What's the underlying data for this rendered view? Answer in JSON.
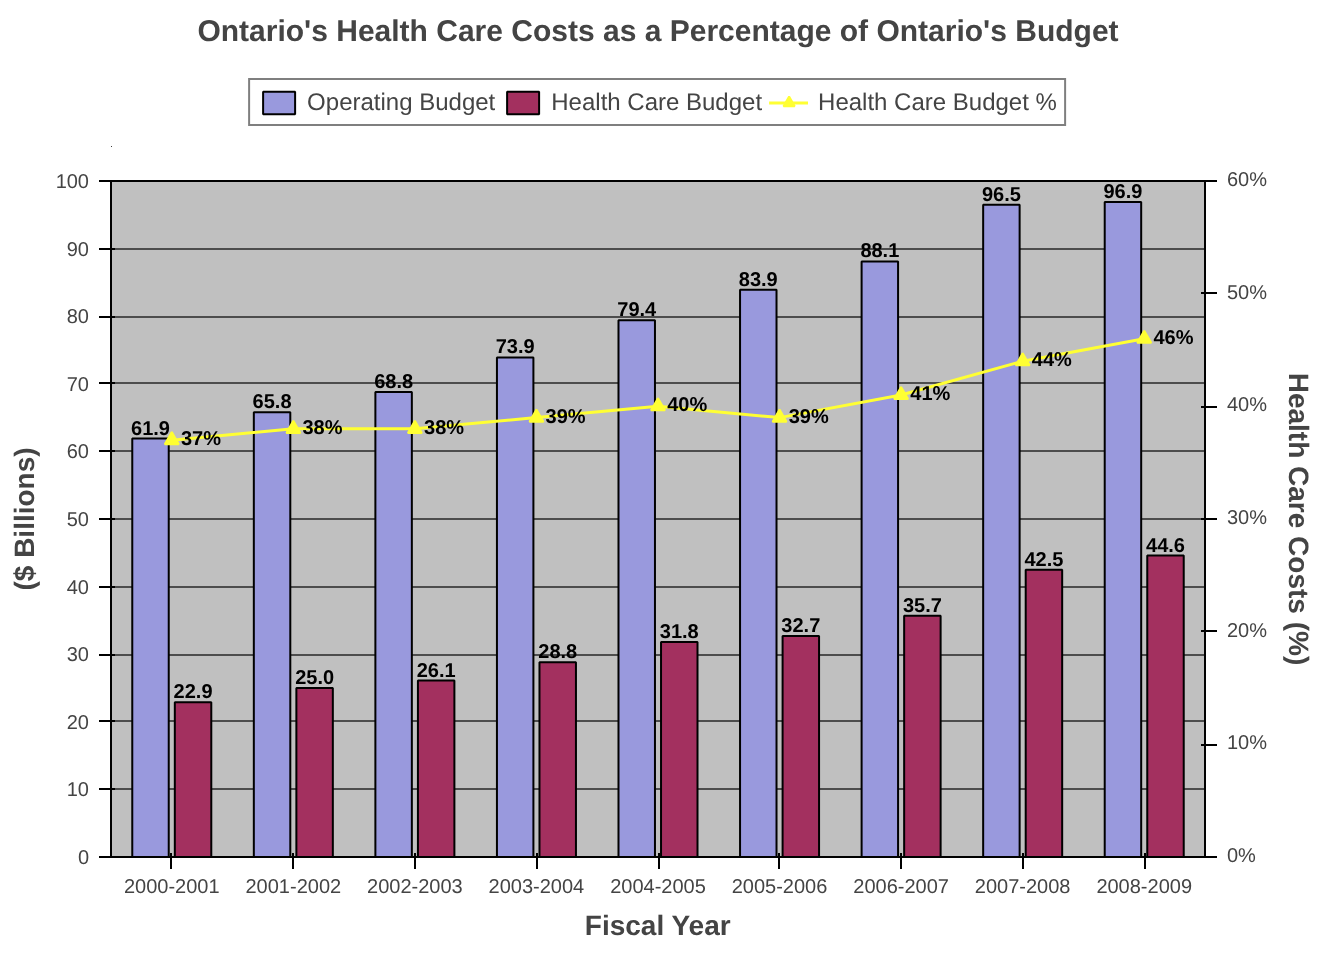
{
  "chart_data": {
    "type": "bar",
    "title": "Ontario's Health Care Costs as a Percentage of Ontario's Budget",
    "xlabel": "Fiscal Year",
    "ylabel": "($ Billions)",
    "y2label": "Health Care Costs (%)",
    "categories": [
      "2000-2001",
      "2001-2002",
      "2002-2003",
      "2003-2004",
      "2004-2005",
      "2005-2006",
      "2006-2007",
      "2007-2008",
      "2008-2009"
    ],
    "series": [
      {
        "name": "Operating Budget",
        "color": "#9999dd",
        "values": [
          61.9,
          65.8,
          68.8,
          73.9,
          79.4,
          83.9,
          88.1,
          96.5,
          96.9
        ],
        "value_labels": [
          "61.9",
          "65.8",
          "68.8",
          "73.9",
          "79.4",
          "83.9",
          "88.1",
          "96.5",
          "96.9"
        ]
      },
      {
        "name": "Health Care Budget",
        "color": "#a3305f",
        "values": [
          22.9,
          25.0,
          26.1,
          28.8,
          31.8,
          32.7,
          35.7,
          42.5,
          44.6
        ],
        "value_labels": [
          "22.9",
          "25.0",
          "26.1",
          "28.8",
          "31.8",
          "32.7",
          "35.7",
          "42.5",
          "44.6"
        ]
      },
      {
        "name": "Health Care Budget %",
        "type": "line",
        "axis": "y2",
        "marker": "triangle",
        "color": "#ffff33",
        "values": [
          37,
          38,
          38,
          39,
          40,
          39,
          41,
          44,
          46
        ],
        "value_labels": [
          "37%",
          "38%",
          "38%",
          "39%",
          "40%",
          "39%",
          "41%",
          "44%",
          "46%"
        ]
      }
    ],
    "ylim": [
      0,
      100
    ],
    "yticks": [
      0,
      10,
      20,
      30,
      40,
      50,
      60,
      70,
      80,
      90,
      100
    ],
    "y2lim": [
      0,
      60
    ],
    "y2ticks": [
      {
        "value": 0,
        "label": "0%"
      },
      {
        "value": 10,
        "label": "10%"
      },
      {
        "value": 20,
        "label": "20%"
      },
      {
        "value": 30,
        "label": "30%"
      },
      {
        "value": 40,
        "label": "40%"
      },
      {
        "value": 50,
        "label": "50%"
      },
      {
        "value": 60,
        "label": "60%"
      }
    ],
    "grid": "y",
    "legend": "top"
  }
}
